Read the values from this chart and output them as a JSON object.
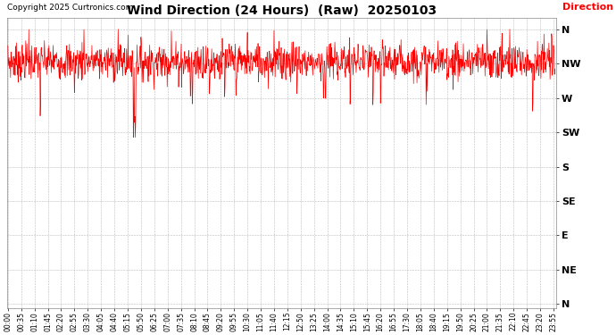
{
  "title": "Wind Direction (24 Hours)  (Raw)  20250103",
  "copyright": "Copyright 2025 Curtronics.com",
  "legend_label": "Direction",
  "legend_color": "red",
  "line_color": "red",
  "background_color": "white",
  "grid_color": "#bbbbbb",
  "ytick_labels": [
    "N",
    "NW",
    "W",
    "SW",
    "S",
    "SE",
    "E",
    "NE",
    "N"
  ],
  "ytick_values": [
    360,
    315,
    270,
    225,
    180,
    135,
    90,
    45,
    0
  ],
  "ylim": [
    -5,
    375
  ],
  "x_tick_labels": [
    "00:00",
    "00:35",
    "01:10",
    "01:45",
    "02:20",
    "02:55",
    "03:30",
    "04:05",
    "04:40",
    "05:15",
    "05:50",
    "06:25",
    "07:00",
    "07:35",
    "08:10",
    "08:45",
    "09:20",
    "09:55",
    "10:30",
    "11:05",
    "11:40",
    "12:15",
    "12:50",
    "13:25",
    "14:00",
    "14:35",
    "15:10",
    "15:45",
    "16:20",
    "16:55",
    "17:30",
    "18:05",
    "18:40",
    "19:15",
    "19:50",
    "20:25",
    "21:00",
    "21:35",
    "22:10",
    "22:45",
    "23:20",
    "23:55"
  ],
  "seed": 7,
  "nw_base": 318,
  "noise_std": 12,
  "sharp_dip_positions": [
    85,
    175,
    330,
    333,
    335,
    480,
    485,
    530,
    570,
    600,
    760,
    830,
    835,
    900,
    960,
    980,
    1100,
    1380
  ],
  "sharp_dip_values": [
    260,
    275,
    225,
    230,
    220,
    270,
    265,
    275,
    265,
    268,
    268,
    268,
    258,
    265,
    260,
    258,
    270,
    248
  ],
  "sharp_spike_positions": [
    55,
    200,
    290,
    430,
    630,
    700,
    1260,
    1300,
    1320,
    1410
  ],
  "sharp_spike_values": [
    360,
    358,
    360,
    358,
    360,
    360,
    360,
    360,
    358,
    356
  ]
}
